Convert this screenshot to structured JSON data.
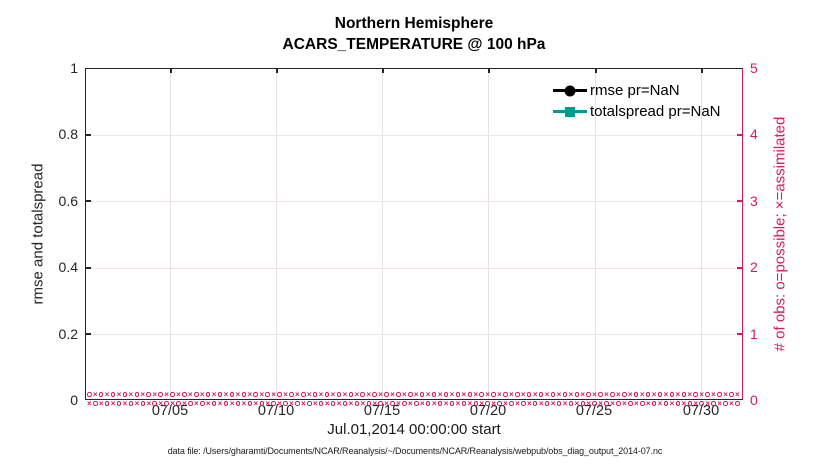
{
  "title": {
    "line1": "Northern Hemisphere",
    "line2": "ACARS_TEMPERATURE @ 100 hPa"
  },
  "left_axis": {
    "label": "rmse and totalspread",
    "ticks": [
      "0",
      "0.2",
      "0.4",
      "0.6",
      "0.8",
      "1"
    ]
  },
  "right_axis": {
    "label": "# of obs: o=possible; ×=assimilated",
    "ticks": [
      "0",
      "1",
      "2",
      "3",
      "4",
      "5"
    ],
    "color": "#d81b60"
  },
  "x_axis": {
    "ticks": [
      "07/05",
      "07/10",
      "07/15",
      "07/20",
      "07/25",
      "07/30"
    ],
    "label": "Jul.01,2014 00:00:00 start"
  },
  "legend": {
    "items": [
      {
        "label": "rmse pr=NaN",
        "color": "#000000",
        "marker": "circle"
      },
      {
        "label": "totalspread pr=NaN",
        "color": "#009a8f",
        "marker": "square"
      }
    ],
    "position": "upper right"
  },
  "obs_band": {
    "symbol_possible": "o",
    "symbol_assimilated": "×",
    "rows": 2,
    "per_row": 110,
    "color": "#d81b60"
  },
  "caption": "data file: /Users/gharamti/Documents/NCAR/Reanalysis/~/Documents/NCAR/Reanalysis/webpub/obs_diag_output_2014-07.nc",
  "chart_data": {
    "type": "line",
    "title": "Northern Hemisphere — ACARS_TEMPERATURE @ 100 hPa",
    "xlabel": "Jul.01,2014 00:00:00 start",
    "x_ticks": [
      "07/05",
      "07/10",
      "07/15",
      "07/20",
      "07/25",
      "07/30"
    ],
    "x_range_days": [
      "2014-07-01",
      "2014-08-01"
    ],
    "left_axis": {
      "label": "rmse and totalspread",
      "ylim": [
        0,
        1
      ]
    },
    "right_axis": {
      "label": "# of obs: o=possible; ×=assimilated",
      "ylim": [
        0,
        5
      ]
    },
    "grid": true,
    "legend_position": "upper right",
    "series": [
      {
        "name": "rmse pr=NaN",
        "axis": "left",
        "style": "black line, filled circle marker",
        "values": "NaN (no curve drawn)"
      },
      {
        "name": "totalspread pr=NaN",
        "axis": "left",
        "style": "teal line, filled square marker",
        "values": "NaN (no curve drawn)"
      },
      {
        "name": "# of obs possible (o markers)",
        "axis": "right",
        "style": "magenta open circles",
        "values": "~0 at every time step across July 2014 (dense band along y=0)"
      },
      {
        "name": "# of obs assimilated (× markers)",
        "axis": "right",
        "style": "magenta × marks",
        "values": "~0 at every time step across July 2014 (dense band along y=0)"
      }
    ]
  }
}
